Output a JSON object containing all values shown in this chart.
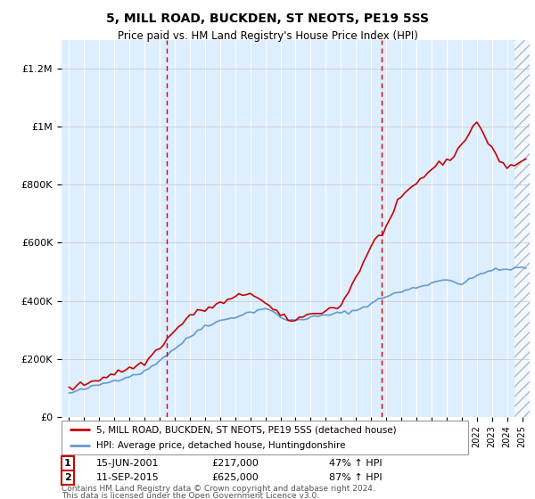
{
  "title": "5, MILL ROAD, BUCKDEN, ST NEOTS, PE19 5SS",
  "subtitle": "Price paid vs. HM Land Registry's House Price Index (HPI)",
  "legend_line1": "5, MILL ROAD, BUCKDEN, ST NEOTS, PE19 5SS (detached house)",
  "legend_line2": "HPI: Average price, detached house, Huntingdonshire",
  "transaction1_date": "15-JUN-2001",
  "transaction1_price": "£217,000",
  "transaction1_hpi": "47% ↑ HPI",
  "transaction1_year": 2001.46,
  "transaction1_value": 217000,
  "transaction2_date": "11-SEP-2015",
  "transaction2_price": "£625,000",
  "transaction2_hpi": "87% ↑ HPI",
  "transaction2_year": 2015.7,
  "transaction2_value": 625000,
  "footnote1": "Contains HM Land Registry data © Crown copyright and database right 2024.",
  "footnote2": "This data is licensed under the Open Government Licence v3.0.",
  "red_line_color": "#cc0000",
  "blue_line_color": "#6699cc",
  "background_color": "#ddeeff",
  "ylim": [
    0,
    1300000
  ],
  "xlim_start": 1994.5,
  "xlim_end": 2025.5
}
